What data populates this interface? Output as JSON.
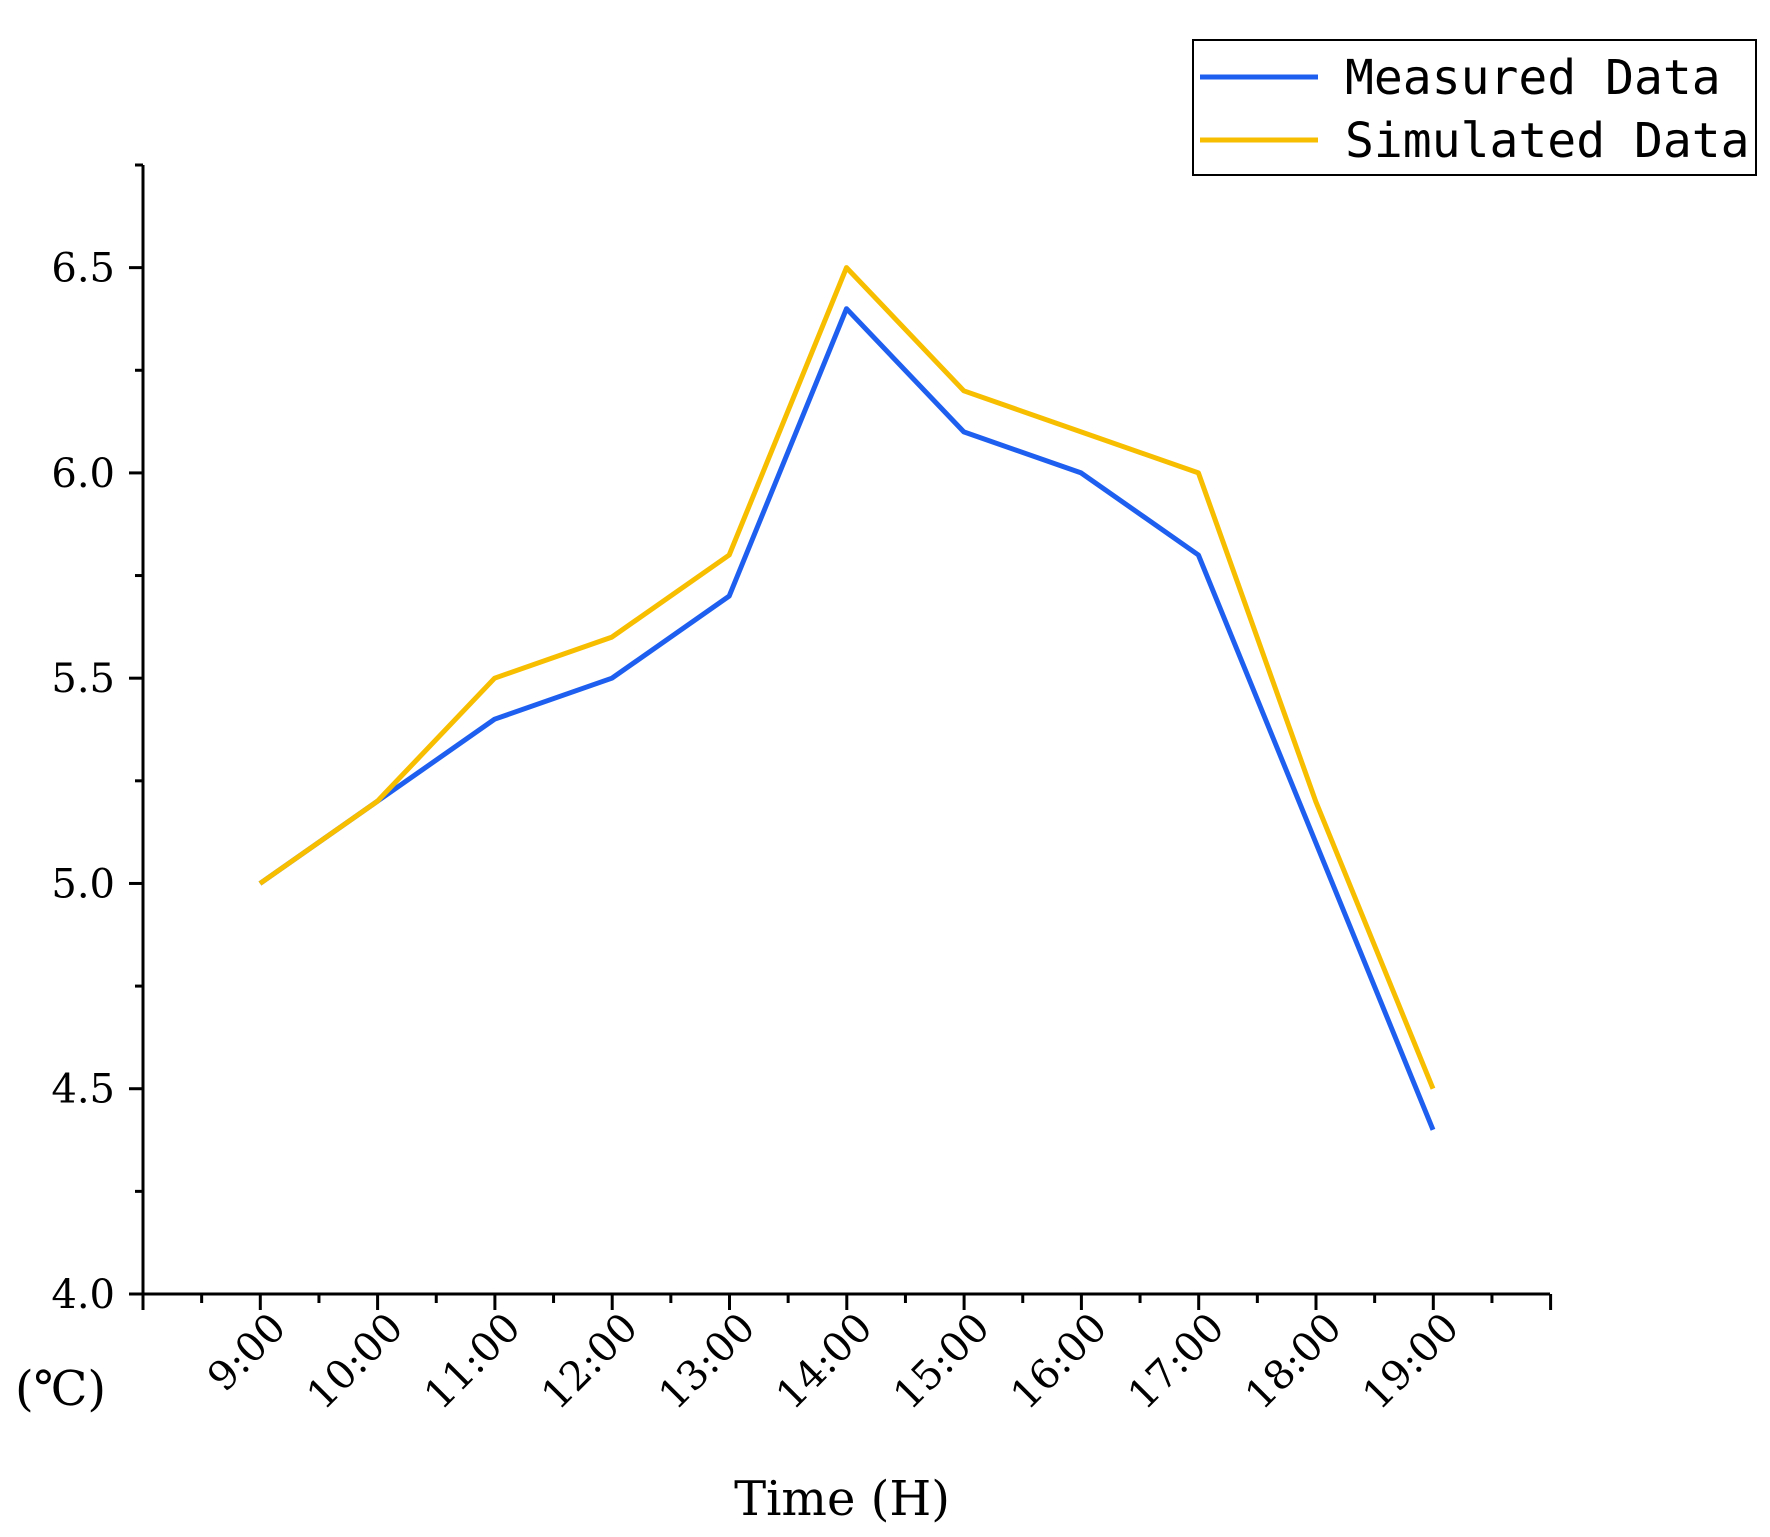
{
  "chart_data": {
    "type": "line",
    "categories": [
      "9:00",
      "10:00",
      "11:00",
      "12:00",
      "13:00",
      "14:00",
      "15:00",
      "16:00",
      "17:00",
      "18:00",
      "19:00"
    ],
    "series": [
      {
        "name": "Measured Data",
        "color": "#1f5ff0",
        "values": [
          5.0,
          5.2,
          5.4,
          5.5,
          5.7,
          6.4,
          6.1,
          6.0,
          5.8,
          5.1,
          4.4
        ]
      },
      {
        "name": "Simulated Data",
        "color": "#f7be00",
        "values": [
          5.0,
          5.2,
          5.5,
          5.6,
          5.8,
          6.5,
          6.2,
          6.1,
          6.0,
          5.2,
          4.5
        ]
      }
    ],
    "xlabel": "Time (H)",
    "ylabel": "(℃)",
    "ylim": [
      4.0,
      6.75
    ],
    "yticks": [
      "4.0",
      "4.5",
      "5.0",
      "5.5",
      "6.0",
      "6.5"
    ],
    "legend": "top-right",
    "grid": false
  }
}
